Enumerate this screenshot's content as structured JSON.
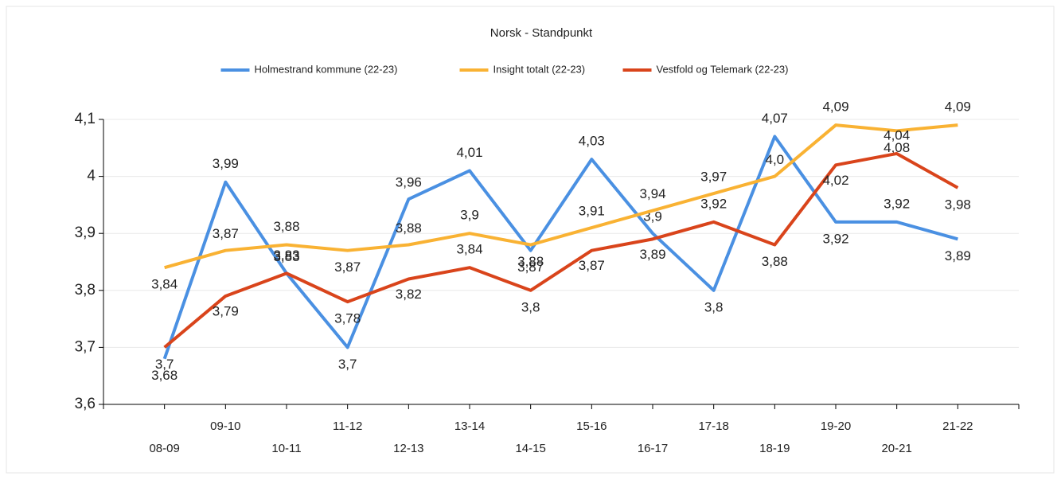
{
  "chart_data": {
    "type": "line",
    "title": "Norsk - Standpunkt",
    "categories": [
      "08-09",
      "09-10",
      "10-11",
      "11-12",
      "12-13",
      "13-14",
      "14-15",
      "15-16",
      "16-17",
      "17-18",
      "18-19",
      "19-20",
      "20-21",
      "21-22"
    ],
    "series": [
      {
        "name": "Holmestrand kommune (22-23)",
        "color": "#4a90e2",
        "values": [
          3.68,
          3.99,
          3.83,
          3.7,
          3.96,
          4.01,
          3.87,
          4.03,
          3.9,
          3.8,
          4.07,
          3.92,
          3.92,
          3.89
        ],
        "value_labels": [
          "3,68",
          "3,99",
          "3,83",
          "3,7",
          "3,96",
          "4,01",
          "3,87",
          "4,03",
          "3,9",
          "3,8",
          "4,07",
          "3,92",
          "3,92",
          "3,89"
        ]
      },
      {
        "name": "Insight totalt (22-23)",
        "color": "#f9b233",
        "values": [
          3.84,
          3.87,
          3.88,
          3.87,
          3.88,
          3.9,
          3.88,
          3.91,
          3.94,
          3.97,
          4.0,
          4.09,
          4.08,
          4.09
        ],
        "value_labels": [
          "3,84",
          "3,87",
          "3,88",
          "3,87",
          "3,88",
          "3,9",
          "3,88",
          "3,91",
          "3,94",
          "3,97",
          "4,0",
          "4,09",
          "4,08",
          "4,09"
        ]
      },
      {
        "name": "Vestfold og Telemark (22-23)",
        "color": "#d9441b",
        "values": [
          3.7,
          3.79,
          3.83,
          3.78,
          3.82,
          3.84,
          3.8,
          3.87,
          3.89,
          3.92,
          3.88,
          4.02,
          4.04,
          3.98
        ],
        "value_labels": [
          "3,7",
          "3,79",
          "3,83",
          "3,78",
          "3,82",
          "3,84",
          "3,8",
          "3,87",
          "3,89",
          "3,92",
          "3,88",
          "4,02",
          "4,04",
          "3,98"
        ]
      }
    ],
    "ylim": [
      3.6,
      4.1
    ],
    "yticks": [
      {
        "value": 3.6,
        "label": "3,6"
      },
      {
        "value": 3.7,
        "label": "3,7"
      },
      {
        "value": 3.8,
        "label": "3,8"
      },
      {
        "value": 3.9,
        "label": "3,9"
      },
      4,
      {
        "value": 4.1,
        "label": "4,1"
      }
    ],
    "grid": true,
    "legend": "top"
  }
}
